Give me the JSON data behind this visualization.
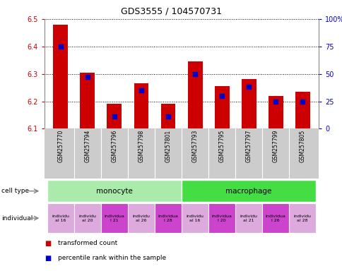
{
  "title": "GDS3555 / 104570731",
  "samples": [
    "GSM257770",
    "GSM257794",
    "GSM257796",
    "GSM257798",
    "GSM257801",
    "GSM257793",
    "GSM257795",
    "GSM257797",
    "GSM257799",
    "GSM257805"
  ],
  "transformed_counts": [
    6.48,
    6.305,
    6.19,
    6.265,
    6.19,
    6.345,
    6.255,
    6.28,
    6.22,
    6.235
  ],
  "percentile_ranks": [
    75,
    47,
    11,
    35,
    11,
    50,
    30,
    38,
    25,
    25
  ],
  "ylim_left": [
    6.1,
    6.5
  ],
  "ylim_right": [
    0,
    100
  ],
  "yticks_left": [
    6.1,
    6.2,
    6.3,
    6.4,
    6.5
  ],
  "yticks_right": [
    0,
    25,
    50,
    75,
    100
  ],
  "ytick_labels_right": [
    "0",
    "25",
    "50",
    "75",
    "100%"
  ],
  "bar_color": "#cc0000",
  "dot_color": "#0000cc",
  "bar_bottom": 6.1,
  "cell_types": [
    {
      "label": "monocyte",
      "start": 0,
      "end": 5,
      "color": "#aaeaaa"
    },
    {
      "label": "macrophage",
      "start": 5,
      "end": 10,
      "color": "#44dd44"
    }
  ],
  "individuals": [
    {
      "label": "individu\nal 16",
      "idx": 0,
      "color": "#ddaadd"
    },
    {
      "label": "individu\nal 20",
      "idx": 1,
      "color": "#ddaadd"
    },
    {
      "label": "individua\nl 21",
      "idx": 2,
      "color": "#cc44cc"
    },
    {
      "label": "individu\nal 26",
      "idx": 3,
      "color": "#ddaadd"
    },
    {
      "label": "individua\nl 28",
      "idx": 4,
      "color": "#cc44cc"
    },
    {
      "label": "individu\nal 16",
      "idx": 5,
      "color": "#ddaadd"
    },
    {
      "label": "individua\nl 20",
      "idx": 6,
      "color": "#cc44cc"
    },
    {
      "label": "individu\nal 21",
      "idx": 7,
      "color": "#ddaadd"
    },
    {
      "label": "individua\nl 26",
      "idx": 8,
      "color": "#cc44cc"
    },
    {
      "label": "individu\nal 28",
      "idx": 9,
      "color": "#ddaadd"
    }
  ],
  "tick_label_color_left": "#cc0000",
  "tick_label_color_right": "#0000cc",
  "legend_items": [
    {
      "label": "transformed count",
      "color": "#cc0000"
    },
    {
      "label": "percentile rank within the sample",
      "color": "#0000cc"
    }
  ],
  "sample_bg_color": "#cccccc",
  "left_labels": [
    "cell type",
    "individual"
  ],
  "arrow_color": "#888888"
}
